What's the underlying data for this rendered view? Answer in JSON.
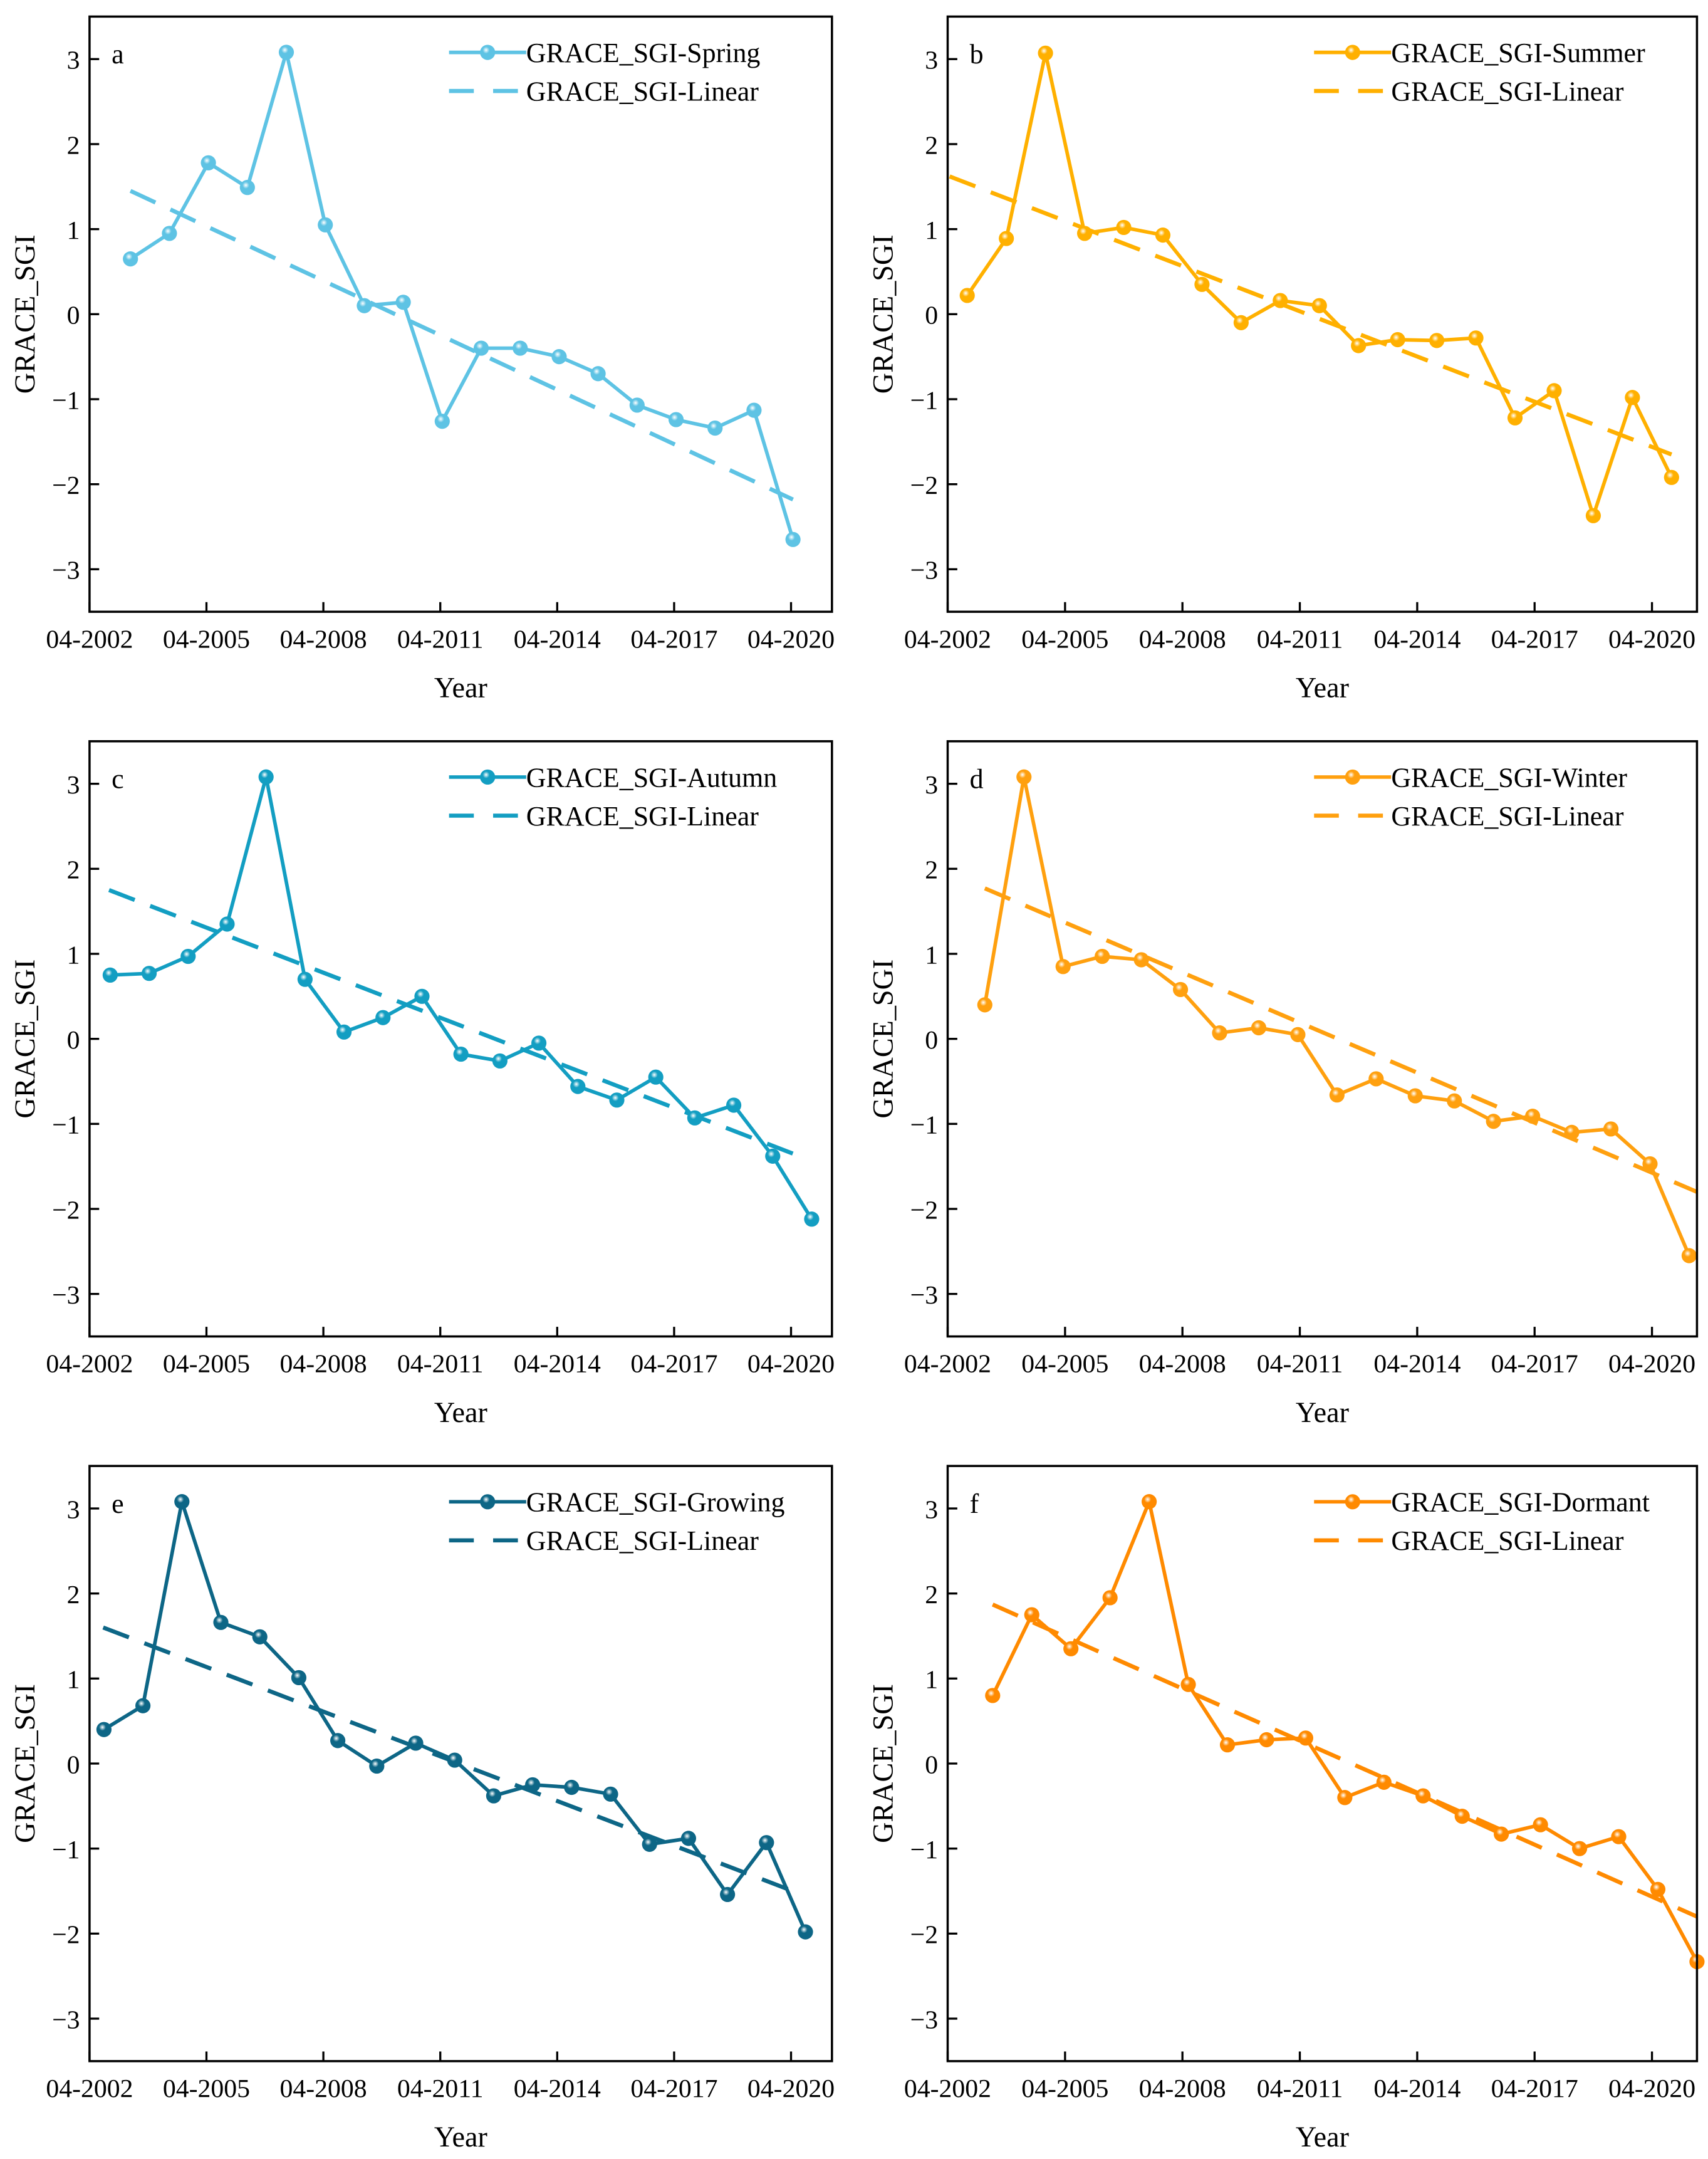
{
  "chart_data": [
    {
      "type": "line",
      "panel": "a",
      "color": "#5ec3e4",
      "xlabel": "Year",
      "ylabel": "GRACE_SGI",
      "xlim": [
        2002.25,
        2021.3
      ],
      "ylim": [
        -3.5,
        3.5
      ],
      "xticks": [
        {
          "v": 2002.25,
          "label": "04-2002"
        },
        {
          "v": 2005.25,
          "label": "04-2005"
        },
        {
          "v": 2008.25,
          "label": "04-2008"
        },
        {
          "v": 2011.25,
          "label": "04-2011"
        },
        {
          "v": 2014.25,
          "label": "04-2014"
        },
        {
          "v": 2017.25,
          "label": "04-2017"
        },
        {
          "v": 2020.25,
          "label": "04-2020"
        }
      ],
      "yticks": [
        {
          "v": 3,
          "label": "3"
        },
        {
          "v": 2,
          "label": "2"
        },
        {
          "v": 1,
          "label": "1"
        },
        {
          "v": 0,
          "label": "0"
        },
        {
          "v": -1,
          "label": "−1"
        },
        {
          "v": -2,
          "label": "−2"
        },
        {
          "v": -3,
          "label": "−3"
        }
      ],
      "series": [
        {
          "name": "GRACE_SGI-Spring",
          "style": "line-marker",
          "x0": 2003.3,
          "step": 1,
          "values": [
            0.65,
            0.95,
            1.78,
            1.49,
            3.08,
            1.05,
            0.1,
            0.14,
            -1.26,
            -0.4,
            -0.4,
            -0.5,
            -0.7,
            -1.07,
            -1.24,
            -1.34,
            -1.13,
            -2.65
          ]
        },
        {
          "name": "GRACE_SGI-Linear",
          "style": "dashed",
          "x": [
            2003.3,
            2020.3
          ],
          "values": [
            1.45,
            -2.18
          ]
        }
      ]
    },
    {
      "type": "line",
      "panel": "b",
      "color": "#ffb000",
      "xlabel": "Year",
      "ylabel": "GRACE_SGI",
      "xlim": [
        2002.25,
        2021.4
      ],
      "ylim": [
        -3.5,
        3.5
      ],
      "xticks": [
        {
          "v": 2002.25,
          "label": "04-2002"
        },
        {
          "v": 2005.25,
          "label": "04-2005"
        },
        {
          "v": 2008.25,
          "label": "04-2008"
        },
        {
          "v": 2011.25,
          "label": "04-2011"
        },
        {
          "v": 2014.25,
          "label": "04-2014"
        },
        {
          "v": 2017.25,
          "label": "04-2017"
        },
        {
          "v": 2020.25,
          "label": "04-2020"
        }
      ],
      "yticks": [
        {
          "v": 3,
          "label": "3"
        },
        {
          "v": 2,
          "label": "2"
        },
        {
          "v": 1,
          "label": "1"
        },
        {
          "v": 0,
          "label": "0"
        },
        {
          "v": -1,
          "label": "−1"
        },
        {
          "v": -2,
          "label": "−2"
        },
        {
          "v": -3,
          "label": "−3"
        }
      ],
      "series": [
        {
          "name": "GRACE_SGI-Summer",
          "style": "line-marker",
          "x0": 2002.75,
          "step": 1,
          "values": [
            0.22,
            0.89,
            3.07,
            0.95,
            1.02,
            0.93,
            0.35,
            -0.1,
            0.16,
            0.1,
            -0.37,
            -0.3,
            -0.31,
            -0.28,
            -1.22,
            -0.9,
            -2.37,
            -0.98,
            -1.92
          ]
        },
        {
          "name": "GRACE_SGI-Linear",
          "style": "dashed",
          "x": [
            2002.3,
            2020.75
          ],
          "values": [
            1.62,
            -1.65
          ]
        }
      ]
    },
    {
      "type": "line",
      "panel": "c",
      "color": "#139ec2",
      "xlabel": "Year",
      "ylabel": "GRACE_SGI",
      "xlim": [
        2002.25,
        2021.3
      ],
      "ylim": [
        -3.5,
        3.5
      ],
      "xticks": [
        {
          "v": 2002.25,
          "label": "04-2002"
        },
        {
          "v": 2005.25,
          "label": "04-2005"
        },
        {
          "v": 2008.25,
          "label": "04-2008"
        },
        {
          "v": 2011.25,
          "label": "04-2011"
        },
        {
          "v": 2014.25,
          "label": "04-2014"
        },
        {
          "v": 2017.25,
          "label": "04-2017"
        },
        {
          "v": 2020.25,
          "label": "04-2020"
        }
      ],
      "yticks": [
        {
          "v": 3,
          "label": "3"
        },
        {
          "v": 2,
          "label": "2"
        },
        {
          "v": 1,
          "label": "1"
        },
        {
          "v": 0,
          "label": "0"
        },
        {
          "v": -1,
          "label": "−1"
        },
        {
          "v": -2,
          "label": "−2"
        },
        {
          "v": -3,
          "label": "−3"
        }
      ],
      "series": [
        {
          "name": "GRACE_SGI-Autumn",
          "style": "line-marker",
          "x0": 2002.78,
          "step": 1,
          "values": [
            0.75,
            0.77,
            0.97,
            1.35,
            3.08,
            0.7,
            0.08,
            0.25,
            0.5,
            -0.18,
            -0.26,
            -0.05,
            -0.56,
            -0.72,
            -0.45,
            -0.93,
            -0.78,
            -1.38,
            -2.12
          ]
        },
        {
          "name": "GRACE_SGI-Linear",
          "style": "dashed",
          "x": [
            2002.75,
            2020.3
          ],
          "values": [
            1.75,
            -1.35
          ]
        }
      ]
    },
    {
      "type": "line",
      "panel": "d",
      "color": "#ffa00f",
      "xlabel": "Year",
      "ylabel": "GRACE_SGI",
      "xlim": [
        2002.25,
        2021.4
      ],
      "ylim": [
        -3.5,
        3.5
      ],
      "xticks": [
        {
          "v": 2002.25,
          "label": "04-2002"
        },
        {
          "v": 2005.25,
          "label": "04-2005"
        },
        {
          "v": 2008.25,
          "label": "04-2008"
        },
        {
          "v": 2011.25,
          "label": "04-2011"
        },
        {
          "v": 2014.25,
          "label": "04-2014"
        },
        {
          "v": 2017.25,
          "label": "04-2017"
        },
        {
          "v": 2020.25,
          "label": "04-2020"
        }
      ],
      "yticks": [
        {
          "v": 3,
          "label": "3"
        },
        {
          "v": 2,
          "label": "2"
        },
        {
          "v": 1,
          "label": "1"
        },
        {
          "v": 0,
          "label": "0"
        },
        {
          "v": -1,
          "label": "−1"
        },
        {
          "v": -2,
          "label": "−2"
        },
        {
          "v": -3,
          "label": "−3"
        }
      ],
      "series": [
        {
          "name": "GRACE_SGI-Winter",
          "style": "line-marker",
          "x0": 2003.2,
          "step": 1,
          "values": [
            0.4,
            3.08,
            0.85,
            0.97,
            0.93,
            0.58,
            0.07,
            0.13,
            0.05,
            -0.66,
            -0.47,
            -0.67,
            -0.73,
            -0.97,
            -0.91,
            -1.1,
            -1.06,
            -1.47,
            -2.55
          ]
        },
        {
          "name": "GRACE_SGI-Linear",
          "style": "dashed",
          "x": [
            2003.2,
            2021.4
          ],
          "values": [
            1.77,
            -1.8
          ]
        }
      ]
    },
    {
      "type": "line",
      "panel": "e",
      "color": "#0d6686",
      "xlabel": "Year",
      "ylabel": "GRACE_SGI",
      "xlim": [
        2002.25,
        2021.3
      ],
      "ylim": [
        -3.5,
        3.5
      ],
      "xticks": [
        {
          "v": 2002.25,
          "label": "04-2002"
        },
        {
          "v": 2005.25,
          "label": "04-2005"
        },
        {
          "v": 2008.25,
          "label": "04-2008"
        },
        {
          "v": 2011.25,
          "label": "04-2011"
        },
        {
          "v": 2014.25,
          "label": "04-2014"
        },
        {
          "v": 2017.25,
          "label": "04-2017"
        },
        {
          "v": 2020.25,
          "label": "04-2020"
        }
      ],
      "yticks": [
        {
          "v": 3,
          "label": "3"
        },
        {
          "v": 2,
          "label": "2"
        },
        {
          "v": 1,
          "label": "1"
        },
        {
          "v": 0,
          "label": "0"
        },
        {
          "v": -1,
          "label": "−1"
        },
        {
          "v": -2,
          "label": "−2"
        },
        {
          "v": -3,
          "label": "−3"
        }
      ],
      "series": [
        {
          "name": "GRACE_SGI-Growing",
          "style": "line-marker",
          "x0": 2002.62,
          "step": 1,
          "values": [
            0.4,
            0.68,
            3.08,
            1.66,
            1.49,
            1.01,
            0.27,
            -0.03,
            0.24,
            0.04,
            -0.38,
            -0.25,
            -0.28,
            -0.36,
            -0.95,
            -0.88,
            -1.54,
            -0.93,
            -1.98
          ]
        },
        {
          "name": "GRACE_SGI-Linear",
          "style": "dashed",
          "x": [
            2002.6,
            2020.3
          ],
          "values": [
            1.6,
            -1.5
          ]
        }
      ]
    },
    {
      "type": "line",
      "panel": "f",
      "color": "#ff8a00",
      "xlabel": "Year",
      "ylabel": "GRACE_SGI",
      "xlim": [
        2002.25,
        2021.4
      ],
      "ylim": [
        -3.5,
        3.5
      ],
      "xticks": [
        {
          "v": 2002.25,
          "label": "04-2002"
        },
        {
          "v": 2005.25,
          "label": "04-2005"
        },
        {
          "v": 2008.25,
          "label": "04-2008"
        },
        {
          "v": 2011.25,
          "label": "04-2011"
        },
        {
          "v": 2014.25,
          "label": "04-2014"
        },
        {
          "v": 2017.25,
          "label": "04-2017"
        },
        {
          "v": 2020.25,
          "label": "04-2020"
        }
      ],
      "yticks": [
        {
          "v": 3,
          "label": "3"
        },
        {
          "v": 2,
          "label": "2"
        },
        {
          "v": 1,
          "label": "1"
        },
        {
          "v": 0,
          "label": "0"
        },
        {
          "v": -1,
          "label": "−1"
        },
        {
          "v": -2,
          "label": "−2"
        },
        {
          "v": -3,
          "label": "−3"
        }
      ],
      "series": [
        {
          "name": "GRACE_SGI-Dormant",
          "style": "line-marker",
          "x0": 2003.4,
          "step": 1,
          "values": [
            0.8,
            1.75,
            1.35,
            1.95,
            3.08,
            0.93,
            0.22,
            0.28,
            0.3,
            -0.4,
            -0.22,
            -0.38,
            -0.62,
            -0.83,
            -0.72,
            -1.0,
            -0.86,
            -1.48,
            -2.33
          ]
        },
        {
          "name": "GRACE_SGI-Linear",
          "style": "dashed",
          "x": [
            2003.4,
            2021.4
          ],
          "values": [
            1.87,
            -1.8
          ]
        }
      ]
    }
  ]
}
